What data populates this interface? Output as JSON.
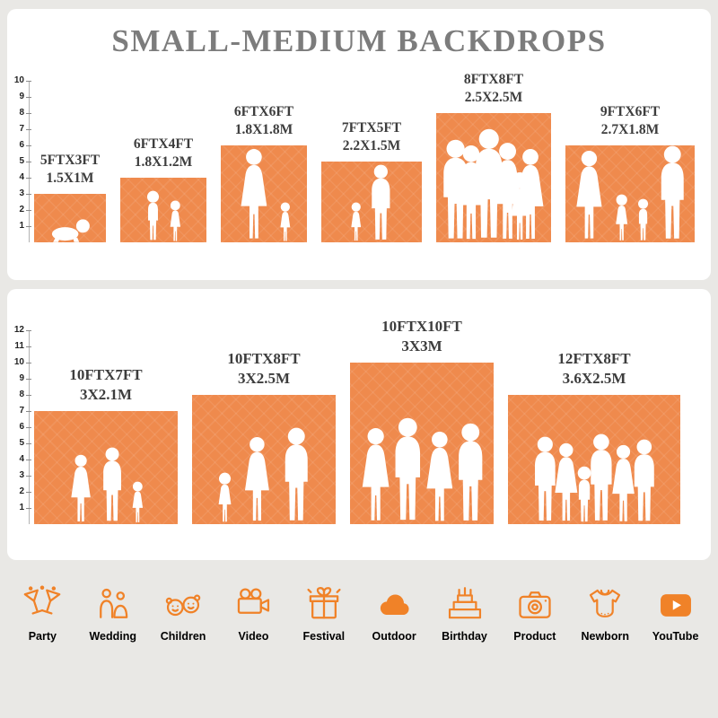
{
  "page": {
    "title": "SMALL-MEDIUM BACKDROPS"
  },
  "colors": {
    "bar_orange": "#EF8A4D",
    "icon_orange": "#F08228",
    "title_gray": "#7C7C7C",
    "label_dark": "#3D3D3D",
    "panel_bg": "#FFFFFF",
    "page_bg": "#E9E8E5"
  },
  "chart_data": [
    {
      "type": "bar",
      "title": "SMALL-MEDIUM BACKDROPS",
      "xlabel": "",
      "ylabel": "",
      "ylim": [
        0,
        10
      ],
      "axis": {
        "ticks": [
          1,
          2,
          3,
          4,
          5,
          6,
          7,
          8,
          9,
          10
        ]
      },
      "bars": [
        {
          "ft": "5FTX3FT",
          "m": "1.5X1M",
          "width_ft": 5,
          "height_ft": 3
        },
        {
          "ft": "6FTX4FT",
          "m": "1.8X1.2M",
          "width_ft": 6,
          "height_ft": 4
        },
        {
          "ft": "6FTX6FT",
          "m": "1.8X1.8M",
          "width_ft": 6,
          "height_ft": 6
        },
        {
          "ft": "7FTX5FT",
          "m": "2.2X1.5M",
          "width_ft": 7,
          "height_ft": 5
        },
        {
          "ft": "8FTX8FT",
          "m": "2.5X2.5M",
          "width_ft": 8,
          "height_ft": 8
        },
        {
          "ft": "9FTX6FT",
          "m": "2.7X1.8M",
          "width_ft": 9,
          "height_ft": 6
        }
      ]
    },
    {
      "type": "bar",
      "title": "",
      "xlabel": "",
      "ylabel": "",
      "ylim": [
        0,
        12
      ],
      "axis": {
        "ticks": [
          1,
          2,
          3,
          4,
          5,
          6,
          7,
          8,
          9,
          10,
          11,
          12
        ]
      },
      "bars": [
        {
          "ft": "10FTX7FT",
          "m": "3X2.1M",
          "width_ft": 10,
          "height_ft": 7
        },
        {
          "ft": "10FTX8FT",
          "m": "3X2.5M",
          "width_ft": 10,
          "height_ft": 8
        },
        {
          "ft": "10FTX10FT",
          "m": "3X3M",
          "width_ft": 10,
          "height_ft": 10
        },
        {
          "ft": "12FTX8FT",
          "m": "3.6X2.5M",
          "width_ft": 12,
          "height_ft": 8
        }
      ]
    }
  ],
  "categories": {
    "items": [
      {
        "label": "Party",
        "icon": "party-icon"
      },
      {
        "label": "Wedding",
        "icon": "wedding-icon"
      },
      {
        "label": "Children",
        "icon": "children-icon"
      },
      {
        "label": "Video",
        "icon": "video-icon"
      },
      {
        "label": "Festival",
        "icon": "festival-icon"
      },
      {
        "label": "Outdoor",
        "icon": "outdoor-icon"
      },
      {
        "label": "Birthday",
        "icon": "birthday-icon"
      },
      {
        "label": "Product",
        "icon": "product-icon"
      },
      {
        "label": "Newborn",
        "icon": "newborn-icon"
      },
      {
        "label": "YouTube",
        "icon": "youtube-icon"
      }
    ]
  }
}
